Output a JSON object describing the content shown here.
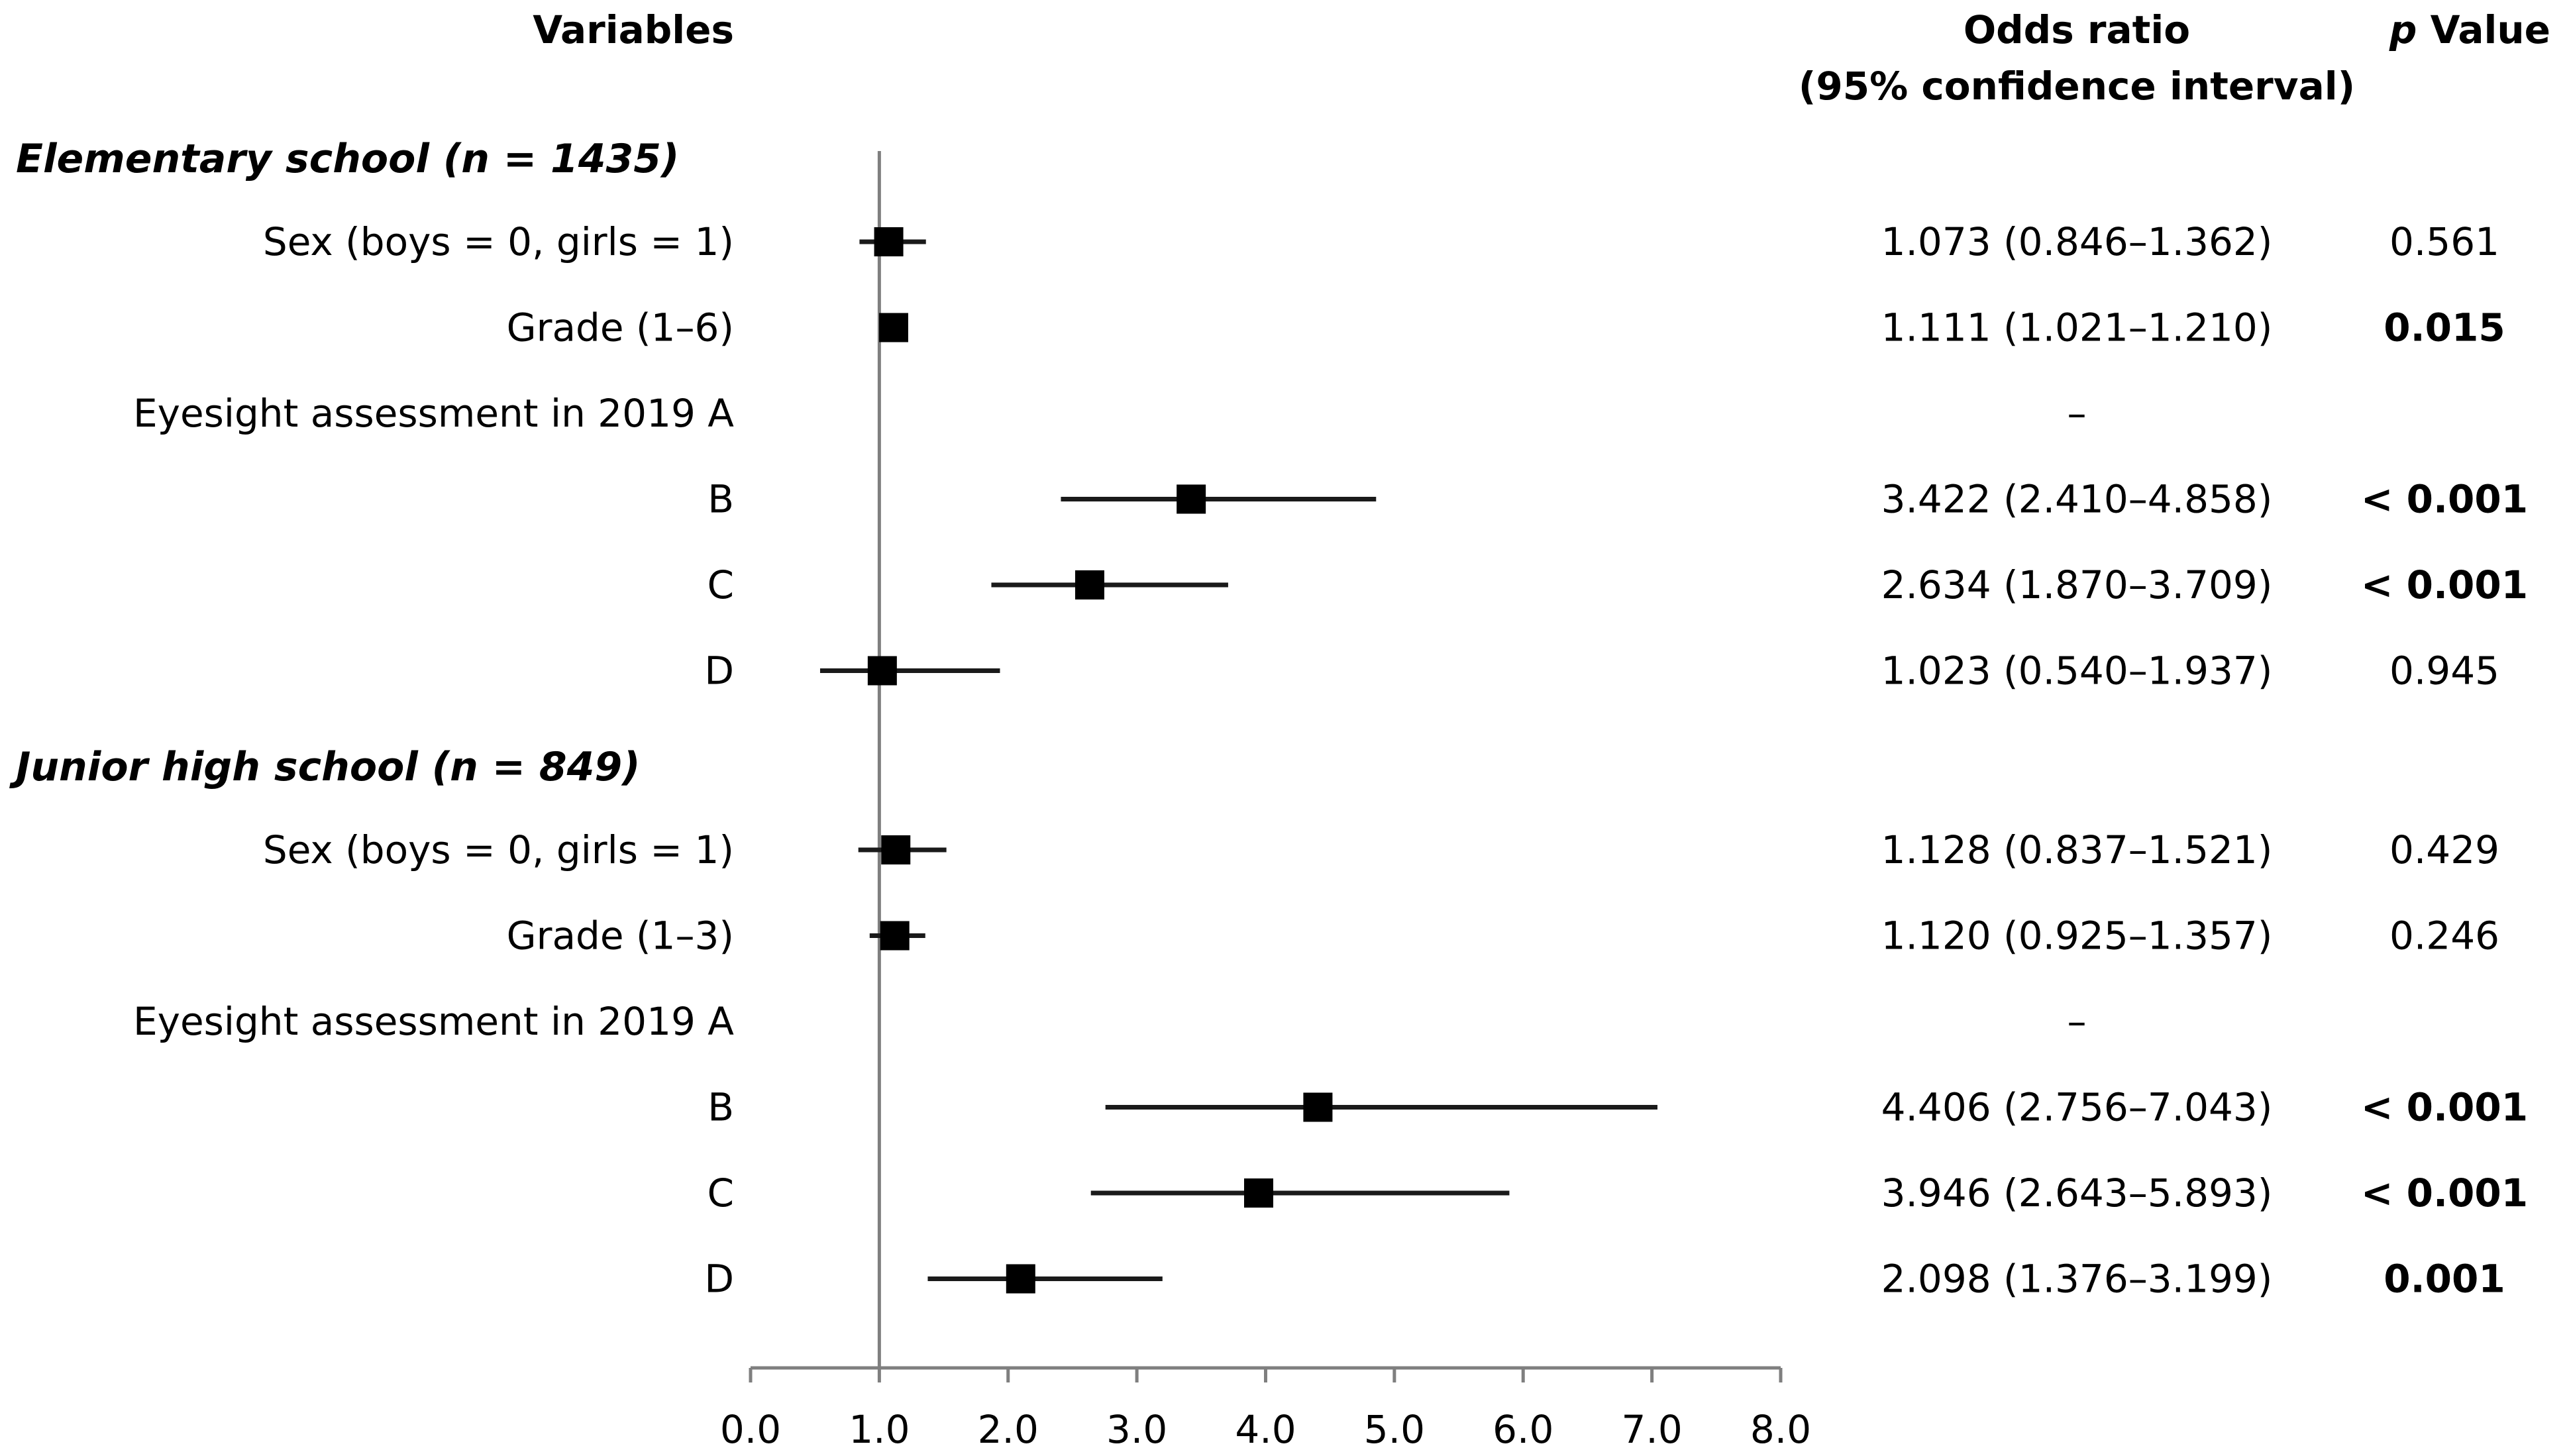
{
  "chart_data": {
    "type": "forest",
    "headers": {
      "variables": "Variables",
      "or_line1": "Odds ratio",
      "or_line2": "(95% confidence interval)",
      "p_italic": "p",
      "p_rest": " Value"
    },
    "reference_value": 1.0,
    "xlim": [
      0,
      8
    ],
    "xticks": [
      "0.0",
      "1.0",
      "2.0",
      "3.0",
      "4.0",
      "5.0",
      "6.0",
      "7.0",
      "8.0"
    ],
    "sections": [
      {
        "title": "Elementary school (n = 1435)",
        "rows": [
          {
            "label": "Sex (boys = 0, girls = 1)",
            "or": 1.073,
            "lo": 0.846,
            "hi": 1.362,
            "or_text": "1.073 (0.846–1.362)",
            "p": "0.561",
            "sig": false
          },
          {
            "label": "Grade (1–6)",
            "or": 1.111,
            "lo": 1.021,
            "hi": 1.21,
            "or_text": "1.111 (1.021–1.210)",
            "p": "0.015",
            "sig": true
          },
          {
            "label": "Eyesight assessment in 2019 A",
            "or": null,
            "lo": null,
            "hi": null,
            "or_text": "–",
            "p": "",
            "sig": false
          },
          {
            "label": "B",
            "or": 3.422,
            "lo": 2.41,
            "hi": 4.858,
            "or_text": "3.422 (2.410–4.858)",
            "p": "< 0.001",
            "sig": true
          },
          {
            "label": "C",
            "or": 2.634,
            "lo": 1.87,
            "hi": 3.709,
            "or_text": "2.634 (1.870–3.709)",
            "p": "< 0.001",
            "sig": true
          },
          {
            "label": "D",
            "or": 1.023,
            "lo": 0.54,
            "hi": 1.937,
            "or_text": "1.023 (0.540–1.937)",
            "p": "0.945",
            "sig": false
          }
        ]
      },
      {
        "title": "Junior high school (n = 849)",
        "rows": [
          {
            "label": "Sex (boys = 0, girls = 1)",
            "or": 1.128,
            "lo": 0.837,
            "hi": 1.521,
            "or_text": "1.128 (0.837–1.521)",
            "p": "0.429",
            "sig": false
          },
          {
            "label": "Grade (1–3)",
            "or": 1.12,
            "lo": 0.925,
            "hi": 1.357,
            "or_text": "1.120 (0.925–1.357)",
            "p": "0.246",
            "sig": false
          },
          {
            "label": "Eyesight assessment in 2019 A",
            "or": null,
            "lo": null,
            "hi": null,
            "or_text": "–",
            "p": "",
            "sig": false
          },
          {
            "label": "B",
            "or": 4.406,
            "lo": 2.756,
            "hi": 7.043,
            "or_text": "4.406 (2.756–7.043)",
            "p": "< 0.001",
            "sig": true
          },
          {
            "label": "C",
            "or": 3.946,
            "lo": 2.643,
            "hi": 5.893,
            "or_text": "3.946 (2.643–5.893)",
            "p": "< 0.001",
            "sig": true
          },
          {
            "label": "D",
            "or": 2.098,
            "lo": 1.376,
            "hi": 3.199,
            "or_text": "2.098 (1.376–3.199)",
            "p": "0.001",
            "sig": true
          }
        ]
      }
    ]
  }
}
